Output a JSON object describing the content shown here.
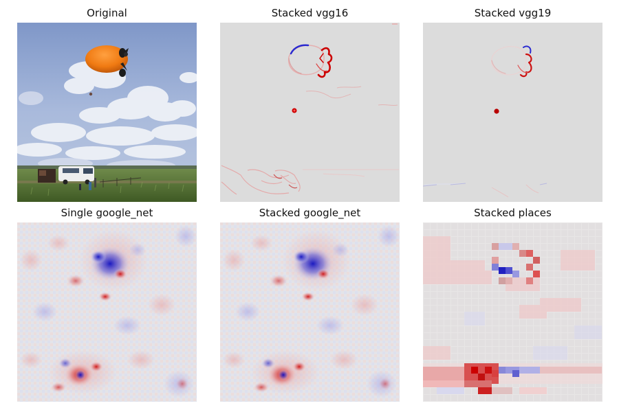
{
  "panels": [
    {
      "title": "Original",
      "kind": "photo"
    },
    {
      "title": "Stacked vgg16",
      "kind": "saliency-sharp"
    },
    {
      "title": "Stacked vgg19",
      "kind": "saliency-sharp-faint"
    },
    {
      "title": "Single google_net",
      "kind": "saliency-checker"
    },
    {
      "title": "Stacked google_net",
      "kind": "saliency-checker"
    },
    {
      "title": "Stacked places",
      "kind": "saliency-blocky"
    }
  ],
  "colors": {
    "saliency_background": "#dcdcdc",
    "positive": "#cc0000",
    "negative": "#0000cc",
    "balloon": "#f07a12",
    "sky": "#9fb2d8",
    "grass": "#5f7f3a"
  }
}
